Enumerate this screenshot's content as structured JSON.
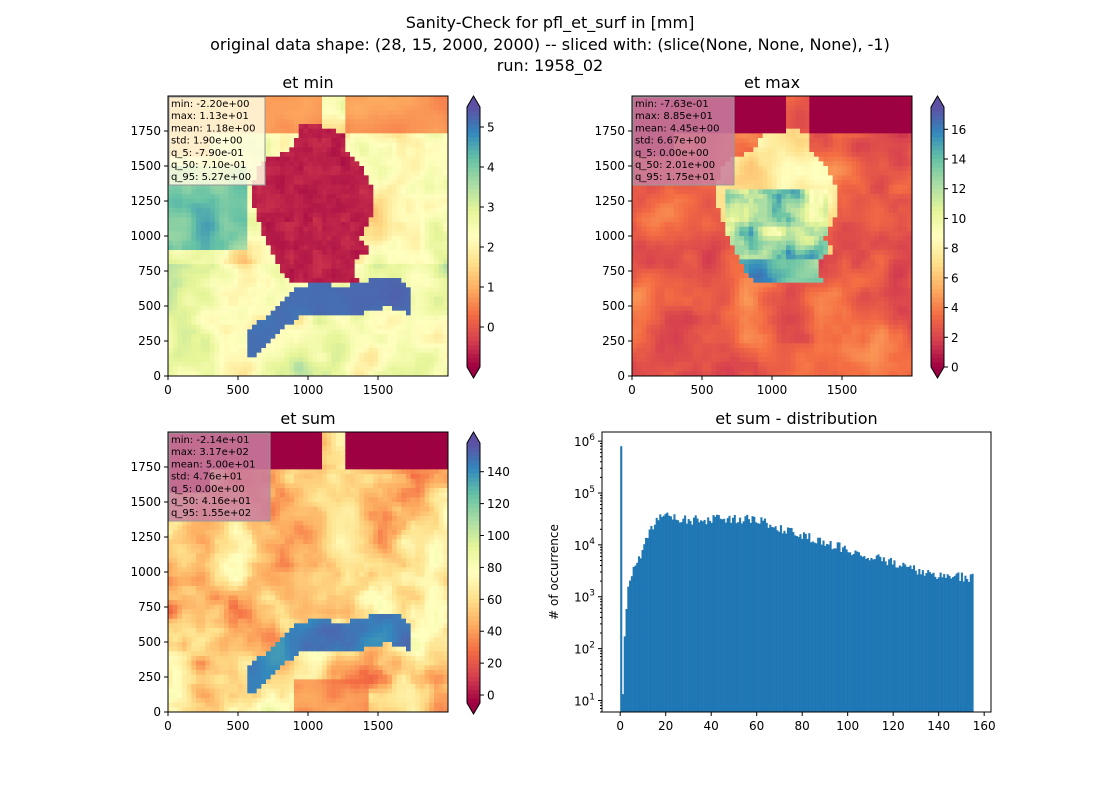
{
  "figure": {
    "title_lines": [
      "Sanity-Check for pfl_et_surf in [mm]",
      "original data shape: (28, 15, 2000, 2000) -- sliced with: (slice(None, None, None), -1)",
      "run: 1958_02"
    ]
  },
  "chart_data": [
    {
      "type": "heatmap",
      "title": "et min",
      "xlim": [
        0,
        2000
      ],
      "ylim": [
        0,
        2000
      ],
      "xticks": [
        "0",
        "500",
        "1000",
        "1500"
      ],
      "yticks": [
        "0",
        "250",
        "500",
        "750",
        "1000",
        "1250",
        "1500",
        "1750"
      ],
      "colorbar": {
        "vmin": -1,
        "vmax": 5.5,
        "ticks": [
          "0",
          "1",
          "2",
          "3",
          "4",
          "5"
        ],
        "tick_values": [
          0,
          1,
          2,
          3,
          4,
          5
        ],
        "extend": "both",
        "cmap": "Spectral"
      },
      "stats": [
        "min: -2.20e+00",
        "max: 1.13e+01",
        "mean: 1.18e+00",
        "std: 1.90e+00",
        "q_5: -7.90e-01",
        "q_50: 7.10e-01",
        "q_95: 5.27e+00"
      ],
      "stats_box_color": "#fffde0"
    },
    {
      "type": "heatmap",
      "title": "et max",
      "xlim": [
        0,
        2000
      ],
      "ylim": [
        0,
        2000
      ],
      "xticks": [
        "0",
        "500",
        "1000",
        "1500"
      ],
      "yticks": [
        "0",
        "250",
        "500",
        "750",
        "1000",
        "1250",
        "1500",
        "1750"
      ],
      "colorbar": {
        "vmin": 0,
        "vmax": 17.5,
        "ticks": [
          "0",
          "2",
          "4",
          "6",
          "8",
          "10",
          "12",
          "14",
          "16"
        ],
        "tick_values": [
          0,
          2,
          4,
          6,
          8,
          10,
          12,
          14,
          16
        ],
        "extend": "both",
        "cmap": "Spectral"
      },
      "stats": [
        "min: -7.63e-01",
        "max: 8.85e+01",
        "mean: 4.45e+00",
        "std: 6.67e+00",
        "q_5: 0.00e+00",
        "q_50: 2.01e+00",
        "q_95: 1.75e+01"
      ],
      "stats_box_color": "#c97fa0"
    },
    {
      "type": "heatmap",
      "title": "et sum",
      "xlim": [
        0,
        2000
      ],
      "ylim": [
        0,
        2000
      ],
      "xticks": [
        "0",
        "500",
        "1000",
        "1500"
      ],
      "yticks": [
        "0",
        "250",
        "500",
        "750",
        "1000",
        "1250",
        "1500",
        "1750"
      ],
      "colorbar": {
        "vmin": -5,
        "vmax": 158,
        "ticks": [
          "0",
          "20",
          "40",
          "60",
          "80",
          "100",
          "120",
          "140"
        ],
        "tick_values": [
          0,
          20,
          40,
          60,
          80,
          100,
          120,
          140
        ],
        "extend": "both",
        "cmap": "Spectral"
      },
      "stats": [
        "min: -2.14e+01",
        "max: 3.17e+02",
        "mean: 5.00e+01",
        "std: 4.76e+01",
        "q_5: 0.00e+00",
        "q_50: 4.16e+01",
        "q_95: 1.55e+02"
      ],
      "stats_box_color": "#c97fa0"
    },
    {
      "type": "bar",
      "title": "et sum - distribution",
      "xlabel": "",
      "ylabel": "# of occurrence",
      "xlim": [
        -8,
        163
      ],
      "ylog": true,
      "ylim": [
        6,
        1500000
      ],
      "xticks": [
        "0",
        "20",
        "40",
        "60",
        "80",
        "100",
        "120",
        "140",
        "160"
      ],
      "xtick_values": [
        0,
        20,
        40,
        60,
        80,
        100,
        120,
        140,
        160
      ],
      "yticks": [
        "10^1",
        "10^2",
        "10^3",
        "10^4",
        "10^5",
        "10^6"
      ],
      "ytick_values": [
        10,
        100,
        1000,
        10000,
        100000,
        1000000
      ],
      "bar_color": "#1f77b4",
      "bin_width": 0.78,
      "anchors": [
        [
          0,
          800000
        ],
        [
          0.8,
          10
        ],
        [
          1.6,
          200
        ],
        [
          3,
          1500
        ],
        [
          5,
          3000
        ],
        [
          7,
          4500
        ],
        [
          9,
          7000
        ],
        [
          11,
          12000
        ],
        [
          13,
          20000
        ],
        [
          15,
          28000
        ],
        [
          17,
          36000
        ],
        [
          18.5,
          40000
        ],
        [
          20,
          38000
        ],
        [
          25,
          32000
        ],
        [
          30,
          30000
        ],
        [
          40,
          31000
        ],
        [
          50,
          32000
        ],
        [
          60,
          30000
        ],
        [
          65,
          25000
        ],
        [
          70,
          21000
        ],
        [
          80,
          15000
        ],
        [
          90,
          11000
        ],
        [
          100,
          8000
        ],
        [
          110,
          6000
        ],
        [
          120,
          4500
        ],
        [
          130,
          3300
        ],
        [
          140,
          2500
        ],
        [
          150,
          2400
        ],
        [
          154.6,
          2300
        ]
      ]
    }
  ]
}
